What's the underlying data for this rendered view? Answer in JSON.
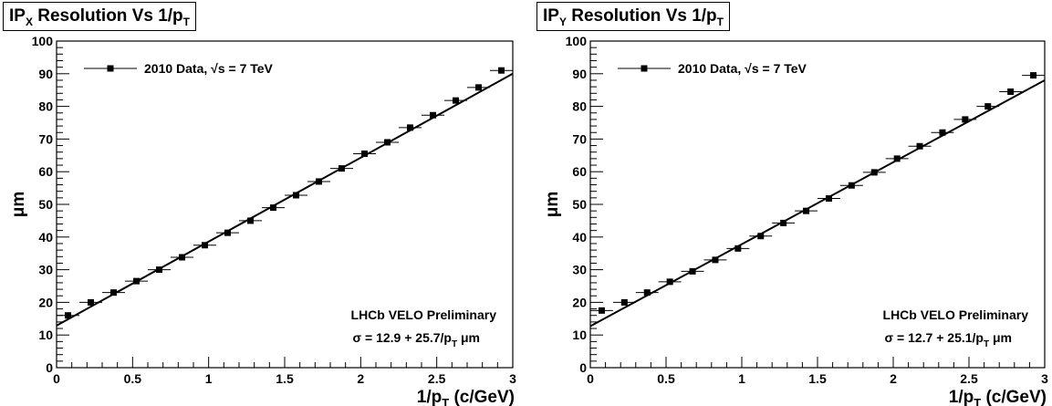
{
  "chart_data": [
    {
      "type": "scatter",
      "title": "IP_X Resolution Vs 1/p_T",
      "title_parts": {
        "main": "IP",
        "sub": "X",
        "rest": " Resolution Vs 1/p",
        "sub2": "T"
      },
      "xlabel": "1/p_T (c/GeV)",
      "xlabel_parts": {
        "a": "1/p",
        "sub": "T",
        "b": " (c/GeV)"
      },
      "ylabel": "μm",
      "xlim": [
        0,
        3
      ],
      "ylim": [
        0,
        100
      ],
      "xticks": [
        "0",
        "0.5",
        "1",
        "1.5",
        "2",
        "2.5",
        "3"
      ],
      "yticks": [
        "0",
        "10",
        "20",
        "30",
        "40",
        "50",
        "60",
        "70",
        "80",
        "90",
        "100"
      ],
      "legend": "2010 Data, √s = 7 TeV",
      "annotation": "LHCb VELO Preliminary",
      "fit_label": "σ = 12.9 + 25.7/p_T μm",
      "fit_label_parts": {
        "a": "σ = 12.9 + 25.7/p",
        "sub": "T",
        "b": " μm"
      },
      "fit": {
        "intercept": 12.9,
        "slope": 25.7
      },
      "series": [
        {
          "x": [
            0.075,
            0.225,
            0.375,
            0.525,
            0.675,
            0.825,
            0.975,
            1.125,
            1.275,
            1.425,
            1.575,
            1.725,
            1.875,
            2.025,
            2.175,
            2.325,
            2.475,
            2.625,
            2.775,
            2.925
          ],
          "y": [
            16.0,
            20.0,
            23.0,
            26.5,
            30.0,
            33.8,
            37.5,
            41.3,
            45.0,
            49.0,
            52.8,
            57.0,
            61.0,
            65.5,
            69.0,
            73.5,
            77.3,
            81.8,
            85.8,
            91.0
          ],
          "xerr": 0.075
        }
      ]
    },
    {
      "type": "scatter",
      "title": "IP_Y Resolution Vs 1/p_T",
      "title_parts": {
        "main": "IP",
        "sub": "Y",
        "rest": " Resolution Vs 1/p",
        "sub2": "T"
      },
      "xlabel": "1/p_T (c/GeV)",
      "xlabel_parts": {
        "a": "1/p",
        "sub": "T",
        "b": " (c/GeV)"
      },
      "ylabel": "μm",
      "xlim": [
        0,
        3
      ],
      "ylim": [
        0,
        100
      ],
      "xticks": [
        "0",
        "0.5",
        "1",
        "1.5",
        "2",
        "2.5",
        "3"
      ],
      "yticks": [
        "0",
        "10",
        "20",
        "30",
        "40",
        "50",
        "60",
        "70",
        "80",
        "90",
        "100"
      ],
      "legend": "2010 Data, √s = 7 TeV",
      "annotation": "LHCb VELO Preliminary",
      "fit_label": "σ = 12.7 + 25.1/p_T μm",
      "fit_label_parts": {
        "a": "σ = 12.7 + 25.1/p",
        "sub": "T",
        "b": " μm"
      },
      "fit": {
        "intercept": 12.7,
        "slope": 25.1
      },
      "series": [
        {
          "x": [
            0.075,
            0.225,
            0.375,
            0.525,
            0.675,
            0.825,
            0.975,
            1.125,
            1.275,
            1.425,
            1.575,
            1.725,
            1.875,
            2.025,
            2.175,
            2.325,
            2.475,
            2.625,
            2.775,
            2.925
          ],
          "y": [
            17.5,
            20.0,
            23.0,
            26.3,
            29.5,
            33.0,
            36.5,
            40.3,
            44.3,
            48.0,
            51.8,
            55.8,
            59.8,
            64.0,
            67.8,
            72.0,
            76.0,
            80.0,
            84.5,
            89.5
          ],
          "xerr": 0.075
        }
      ]
    }
  ]
}
